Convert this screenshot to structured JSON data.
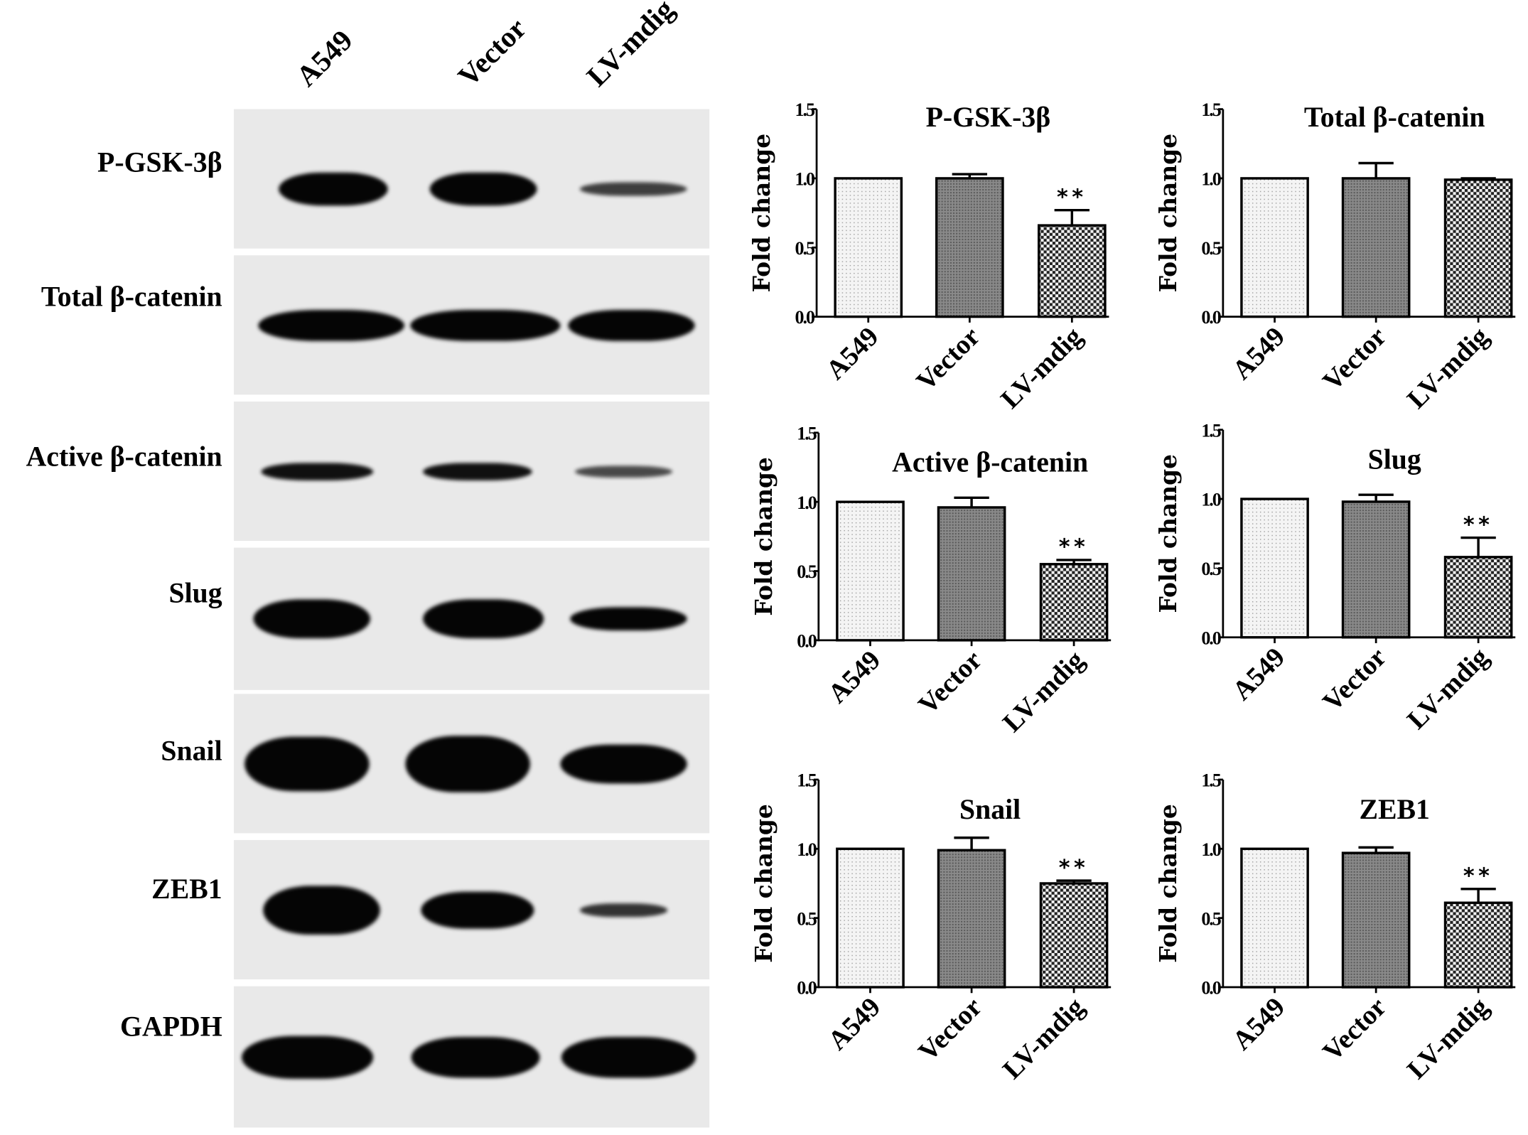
{
  "blot": {
    "lanes": [
      "A549",
      "Vector",
      "LV-mdig"
    ],
    "rows": [
      "P-GSK-3β",
      "Total β-catenin",
      "Active β-catenin",
      "Slug",
      "Snail",
      "ZEB1",
      "GAPDH"
    ]
  },
  "chart_data": [
    {
      "type": "bar",
      "title": "P-GSK-3β",
      "ylabel": "Fold change",
      "categories": [
        "A549",
        "Vector",
        "LV-mdig"
      ],
      "values": [
        1.0,
        1.0,
        0.66
      ],
      "errors": [
        0,
        0.03,
        0.11
      ],
      "significance": [
        "",
        "",
        "**"
      ],
      "ylim": [
        0,
        1.5
      ],
      "yticks": [
        "0.0",
        "0.5",
        "1.0",
        "1.5"
      ]
    },
    {
      "type": "bar",
      "title": "Total β-catenin",
      "ylabel": "Fold change",
      "categories": [
        "A549",
        "Vector",
        "LV-mdig"
      ],
      "values": [
        1.0,
        1.0,
        0.99
      ],
      "errors": [
        0,
        0.11,
        0.01
      ],
      "significance": [
        "",
        "",
        ""
      ],
      "ylim": [
        0,
        1.5
      ],
      "yticks": [
        "0.0",
        "0.5",
        "1.0",
        "1.5"
      ]
    },
    {
      "type": "bar",
      "title": "Active β-catenin",
      "ylabel": "Fold change",
      "categories": [
        "A549",
        "Vector",
        "LV-mdig"
      ],
      "values": [
        1.0,
        0.96,
        0.55
      ],
      "errors": [
        0,
        0.07,
        0.03
      ],
      "significance": [
        "",
        "",
        "**"
      ],
      "ylim": [
        0,
        1.5
      ],
      "yticks": [
        "0.0",
        "0.5",
        "1.0",
        "1.5"
      ]
    },
    {
      "type": "bar",
      "title": "Slug",
      "ylabel": "Fold change",
      "categories": [
        "A549",
        "Vector",
        "LV-mdig"
      ],
      "values": [
        1.0,
        0.98,
        0.58
      ],
      "errors": [
        0,
        0.05,
        0.14
      ],
      "significance": [
        "",
        "",
        "**"
      ],
      "ylim": [
        0,
        1.5
      ],
      "yticks": [
        "0.0",
        "0.5",
        "1.0",
        "1.5"
      ]
    },
    {
      "type": "bar",
      "title": "Snail",
      "ylabel": "Fold change",
      "categories": [
        "A549",
        "Vector",
        "LV-mdig"
      ],
      "values": [
        1.0,
        0.99,
        0.75
      ],
      "errors": [
        0,
        0.09,
        0.02
      ],
      "significance": [
        "",
        "",
        "**"
      ],
      "ylim": [
        0,
        1.5
      ],
      "yticks": [
        "0.0",
        "0.5",
        "1.0",
        "1.5"
      ]
    },
    {
      "type": "bar",
      "title": "ZEB1",
      "ylabel": "Fold change",
      "categories": [
        "A549",
        "Vector",
        "LV-mdig"
      ],
      "values": [
        1.0,
        0.97,
        0.61
      ],
      "errors": [
        0,
        0.04,
        0.1
      ],
      "significance": [
        "",
        "",
        "**"
      ],
      "ylim": [
        0,
        1.5
      ],
      "yticks": [
        "0.0",
        "0.5",
        "1.0",
        "1.5"
      ]
    }
  ]
}
